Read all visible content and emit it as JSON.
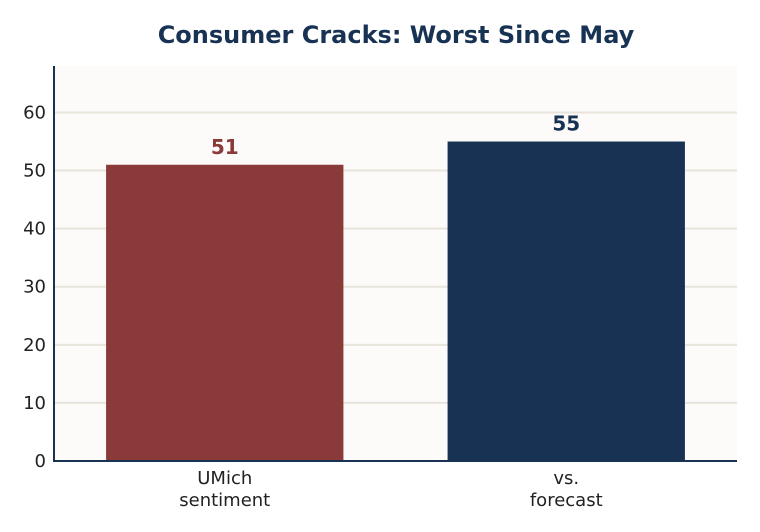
{
  "chart_data": {
    "type": "bar",
    "title": "Consumer Cracks: Worst Since May",
    "xlabel": "",
    "ylabel": "",
    "categories": [
      [
        "UMich",
        "sentiment"
      ],
      [
        "vs.",
        "forecast"
      ]
    ],
    "values": [
      51,
      55
    ],
    "value_labels": [
      "51",
      "55"
    ],
    "bar_colors": [
      "#8b3a3a",
      "#173253"
    ],
    "ylim": [
      0,
      68
    ],
    "yticks": [
      0,
      10,
      20,
      30,
      40,
      50,
      60
    ],
    "ytick_labels": [
      "0",
      "10",
      "20",
      "30",
      "40",
      "50",
      "60"
    ],
    "grid": "horizontal",
    "colors": {
      "title": "#173253",
      "axis": "#173253",
      "grid": "#e8e4dc",
      "plot_background": "#fcfbfa",
      "text": "#222222"
    }
  }
}
